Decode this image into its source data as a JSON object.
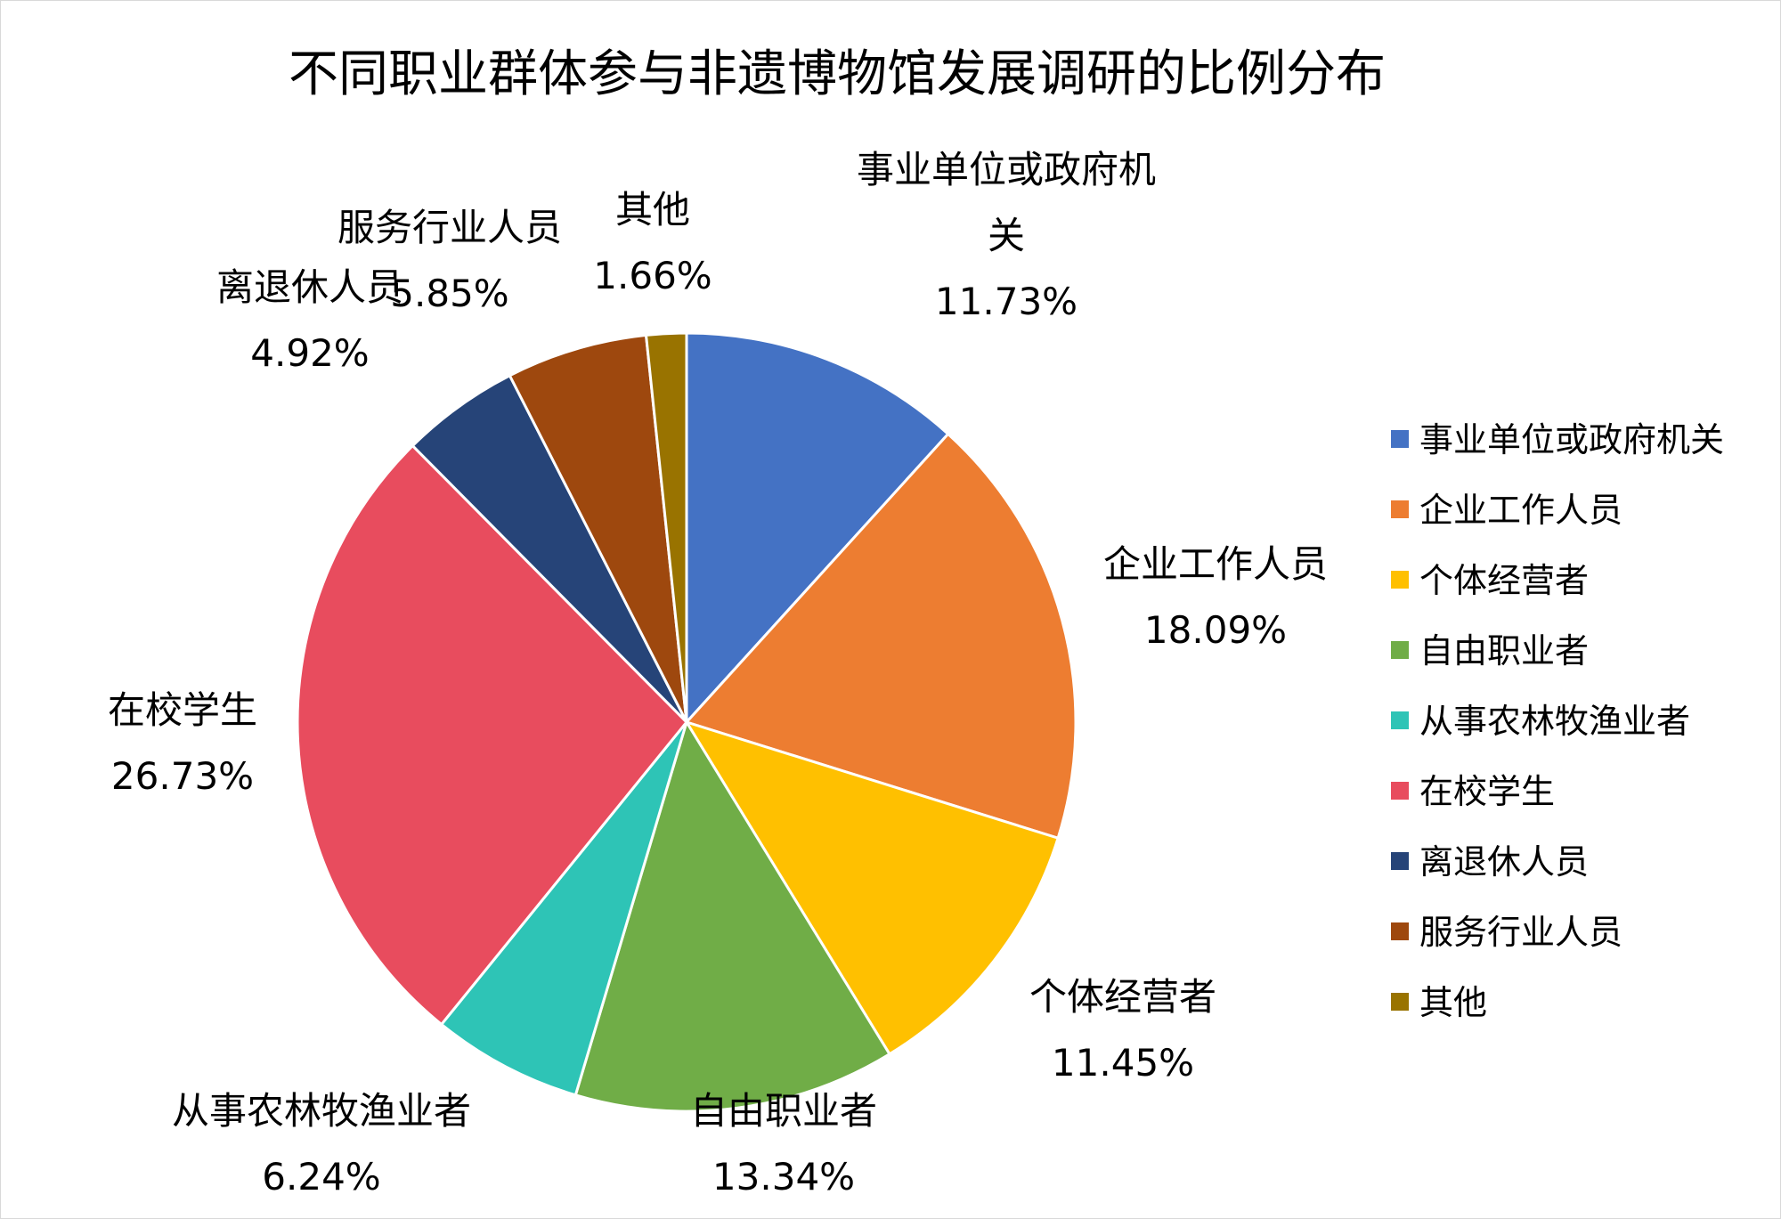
{
  "chart_data": {
    "type": "pie",
    "title": "不同职业群体参与非遗博物馆发展调研的比例分布",
    "legend_position": "right",
    "slices": [
      {
        "name": "事业单位或政府机关",
        "label_lines": [
          "事业单位或政府机",
          "关"
        ],
        "value": 11.73,
        "value_label": "11.73%",
        "color": "#4472C4"
      },
      {
        "name": "企业工作人员",
        "label_lines": [
          "企业工作人员"
        ],
        "value": 18.09,
        "value_label": "18.09%",
        "color": "#ED7D31"
      },
      {
        "name": "个体经营者",
        "label_lines": [
          "个体经营者"
        ],
        "value": 11.45,
        "value_label": "11.45%",
        "color": "#FFC000"
      },
      {
        "name": "自由职业者",
        "label_lines": [
          "自由职业者"
        ],
        "value": 13.34,
        "value_label": "13.34%",
        "color": "#70AD47"
      },
      {
        "name": "从事农林牧渔业者",
        "label_lines": [
          "从事农林牧渔业者"
        ],
        "value": 6.24,
        "value_label": "6.24%",
        "color": "#2EC4B6"
      },
      {
        "name": "在校学生",
        "label_lines": [
          "在校学生"
        ],
        "value": 26.73,
        "value_label": "26.73%",
        "color": "#E84C5E"
      },
      {
        "name": "离退休人员",
        "label_lines": [
          "离退休人员"
        ],
        "value": 4.92,
        "value_label": "4.92%",
        "color": "#264478"
      },
      {
        "name": "服务行业人员",
        "label_lines": [
          "服务行业人员"
        ],
        "value": 5.85,
        "value_label": "5.85%",
        "color": "#9E480E"
      },
      {
        "name": "其他",
        "label_lines": [
          "其他"
        ],
        "value": 1.66,
        "value_label": "1.66%",
        "color": "#997300"
      }
    ]
  }
}
